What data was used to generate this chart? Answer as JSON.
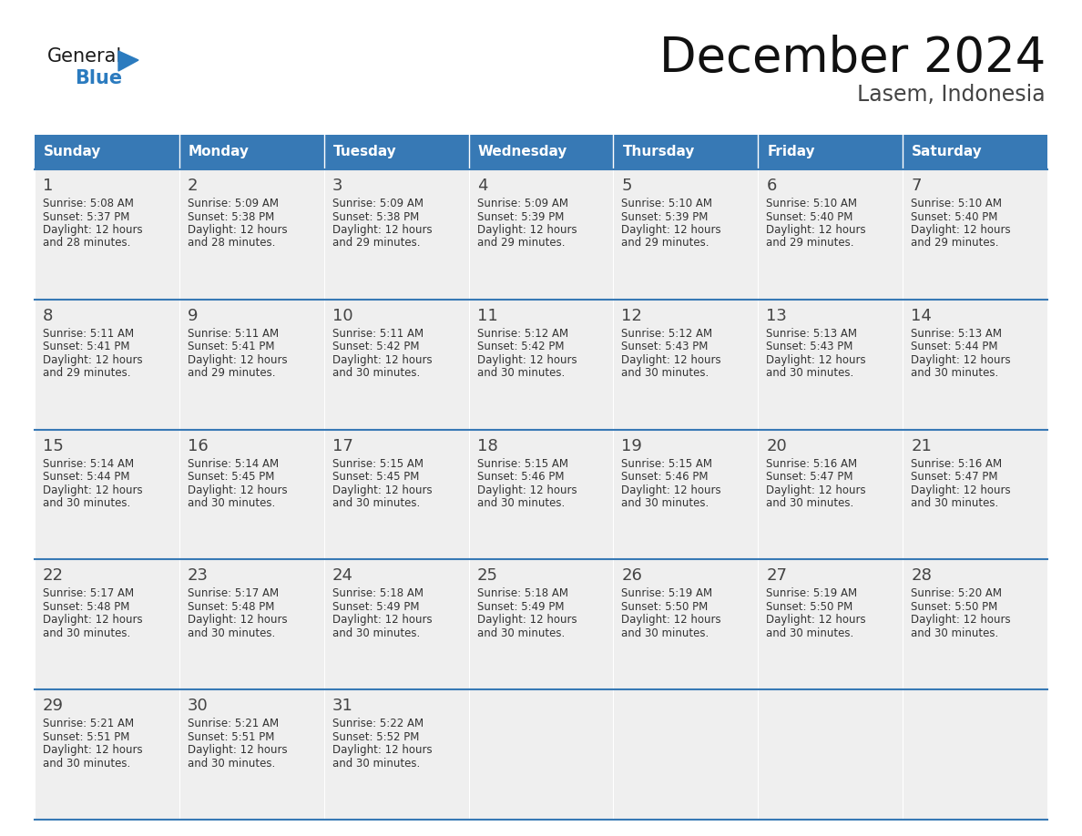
{
  "title": "December 2024",
  "subtitle": "Lasem, Indonesia",
  "header_color": "#3779b5",
  "header_text_color": "#ffffff",
  "cell_bg_color": "#efefef",
  "line_color": "#3779b5",
  "text_color": "#333333",
  "day_number_color": "#444444",
  "logo_general_color": "#1a1a1a",
  "logo_blue_color": "#2b7bbf",
  "day_headers": [
    "Sunday",
    "Monday",
    "Tuesday",
    "Wednesday",
    "Thursday",
    "Friday",
    "Saturday"
  ],
  "days": [
    {
      "day": 1,
      "col": 0,
      "row": 0,
      "sunrise": "5:08 AM",
      "sunset": "5:37 PM",
      "daylight_hours": 12,
      "daylight_minutes": 28
    },
    {
      "day": 2,
      "col": 1,
      "row": 0,
      "sunrise": "5:09 AM",
      "sunset": "5:38 PM",
      "daylight_hours": 12,
      "daylight_minutes": 28
    },
    {
      "day": 3,
      "col": 2,
      "row": 0,
      "sunrise": "5:09 AM",
      "sunset": "5:38 PM",
      "daylight_hours": 12,
      "daylight_minutes": 29
    },
    {
      "day": 4,
      "col": 3,
      "row": 0,
      "sunrise": "5:09 AM",
      "sunset": "5:39 PM",
      "daylight_hours": 12,
      "daylight_minutes": 29
    },
    {
      "day": 5,
      "col": 4,
      "row": 0,
      "sunrise": "5:10 AM",
      "sunset": "5:39 PM",
      "daylight_hours": 12,
      "daylight_minutes": 29
    },
    {
      "day": 6,
      "col": 5,
      "row": 0,
      "sunrise": "5:10 AM",
      "sunset": "5:40 PM",
      "daylight_hours": 12,
      "daylight_minutes": 29
    },
    {
      "day": 7,
      "col": 6,
      "row": 0,
      "sunrise": "5:10 AM",
      "sunset": "5:40 PM",
      "daylight_hours": 12,
      "daylight_minutes": 29
    },
    {
      "day": 8,
      "col": 0,
      "row": 1,
      "sunrise": "5:11 AM",
      "sunset": "5:41 PM",
      "daylight_hours": 12,
      "daylight_minutes": 29
    },
    {
      "day": 9,
      "col": 1,
      "row": 1,
      "sunrise": "5:11 AM",
      "sunset": "5:41 PM",
      "daylight_hours": 12,
      "daylight_minutes": 29
    },
    {
      "day": 10,
      "col": 2,
      "row": 1,
      "sunrise": "5:11 AM",
      "sunset": "5:42 PM",
      "daylight_hours": 12,
      "daylight_minutes": 30
    },
    {
      "day": 11,
      "col": 3,
      "row": 1,
      "sunrise": "5:12 AM",
      "sunset": "5:42 PM",
      "daylight_hours": 12,
      "daylight_minutes": 30
    },
    {
      "day": 12,
      "col": 4,
      "row": 1,
      "sunrise": "5:12 AM",
      "sunset": "5:43 PM",
      "daylight_hours": 12,
      "daylight_minutes": 30
    },
    {
      "day": 13,
      "col": 5,
      "row": 1,
      "sunrise": "5:13 AM",
      "sunset": "5:43 PM",
      "daylight_hours": 12,
      "daylight_minutes": 30
    },
    {
      "day": 14,
      "col": 6,
      "row": 1,
      "sunrise": "5:13 AM",
      "sunset": "5:44 PM",
      "daylight_hours": 12,
      "daylight_minutes": 30
    },
    {
      "day": 15,
      "col": 0,
      "row": 2,
      "sunrise": "5:14 AM",
      "sunset": "5:44 PM",
      "daylight_hours": 12,
      "daylight_minutes": 30
    },
    {
      "day": 16,
      "col": 1,
      "row": 2,
      "sunrise": "5:14 AM",
      "sunset": "5:45 PM",
      "daylight_hours": 12,
      "daylight_minutes": 30
    },
    {
      "day": 17,
      "col": 2,
      "row": 2,
      "sunrise": "5:15 AM",
      "sunset": "5:45 PM",
      "daylight_hours": 12,
      "daylight_minutes": 30
    },
    {
      "day": 18,
      "col": 3,
      "row": 2,
      "sunrise": "5:15 AM",
      "sunset": "5:46 PM",
      "daylight_hours": 12,
      "daylight_minutes": 30
    },
    {
      "day": 19,
      "col": 4,
      "row": 2,
      "sunrise": "5:15 AM",
      "sunset": "5:46 PM",
      "daylight_hours": 12,
      "daylight_minutes": 30
    },
    {
      "day": 20,
      "col": 5,
      "row": 2,
      "sunrise": "5:16 AM",
      "sunset": "5:47 PM",
      "daylight_hours": 12,
      "daylight_minutes": 30
    },
    {
      "day": 21,
      "col": 6,
      "row": 2,
      "sunrise": "5:16 AM",
      "sunset": "5:47 PM",
      "daylight_hours": 12,
      "daylight_minutes": 30
    },
    {
      "day": 22,
      "col": 0,
      "row": 3,
      "sunrise": "5:17 AM",
      "sunset": "5:48 PM",
      "daylight_hours": 12,
      "daylight_minutes": 30
    },
    {
      "day": 23,
      "col": 1,
      "row": 3,
      "sunrise": "5:17 AM",
      "sunset": "5:48 PM",
      "daylight_hours": 12,
      "daylight_minutes": 30
    },
    {
      "day": 24,
      "col": 2,
      "row": 3,
      "sunrise": "5:18 AM",
      "sunset": "5:49 PM",
      "daylight_hours": 12,
      "daylight_minutes": 30
    },
    {
      "day": 25,
      "col": 3,
      "row": 3,
      "sunrise": "5:18 AM",
      "sunset": "5:49 PM",
      "daylight_hours": 12,
      "daylight_minutes": 30
    },
    {
      "day": 26,
      "col": 4,
      "row": 3,
      "sunrise": "5:19 AM",
      "sunset": "5:50 PM",
      "daylight_hours": 12,
      "daylight_minutes": 30
    },
    {
      "day": 27,
      "col": 5,
      "row": 3,
      "sunrise": "5:19 AM",
      "sunset": "5:50 PM",
      "daylight_hours": 12,
      "daylight_minutes": 30
    },
    {
      "day": 28,
      "col": 6,
      "row": 3,
      "sunrise": "5:20 AM",
      "sunset": "5:50 PM",
      "daylight_hours": 12,
      "daylight_minutes": 30
    },
    {
      "day": 29,
      "col": 0,
      "row": 4,
      "sunrise": "5:21 AM",
      "sunset": "5:51 PM",
      "daylight_hours": 12,
      "daylight_minutes": 30
    },
    {
      "day": 30,
      "col": 1,
      "row": 4,
      "sunrise": "5:21 AM",
      "sunset": "5:51 PM",
      "daylight_hours": 12,
      "daylight_minutes": 30
    },
    {
      "day": 31,
      "col": 2,
      "row": 4,
      "sunrise": "5:22 AM",
      "sunset": "5:52 PM",
      "daylight_hours": 12,
      "daylight_minutes": 30
    }
  ],
  "num_rows": 5
}
